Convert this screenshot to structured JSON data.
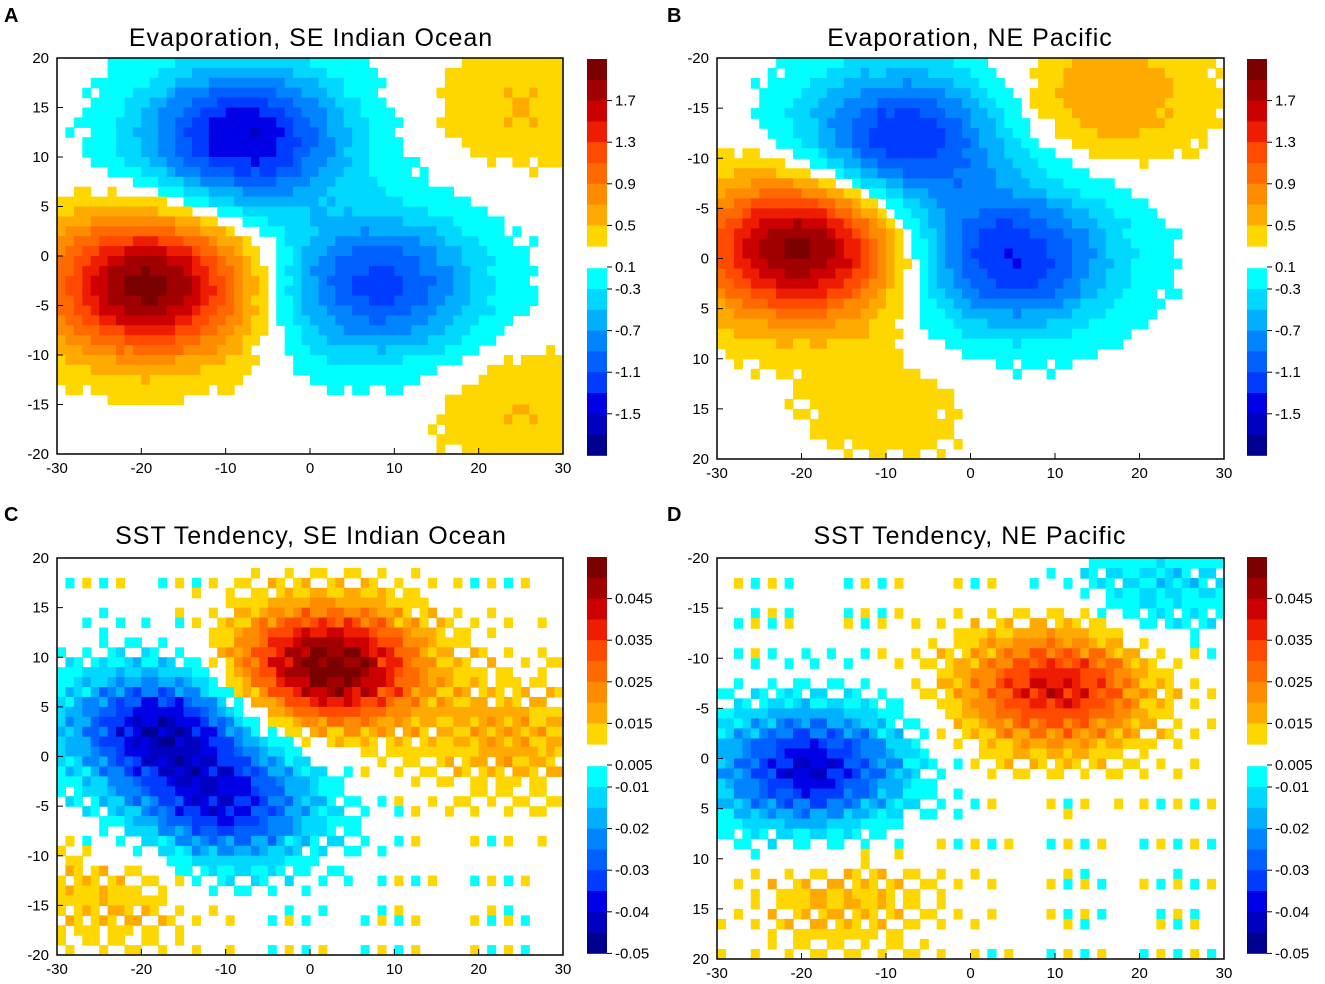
{
  "figure": {
    "panels": [
      "A",
      "B",
      "C",
      "D"
    ]
  },
  "palette": {
    "warm": [
      "#ffd700",
      "#ffaa00",
      "#ff8c00",
      "#ff6a00",
      "#ff4a00",
      "#ee1c00",
      "#cc0000",
      "#a00000",
      "#7b0000"
    ],
    "cool": [
      "#00ffff",
      "#00d8ff",
      "#00b0ff",
      "#0084ff",
      "#0060ff",
      "#003cff",
      "#0000e6",
      "#0000c0",
      "#000090"
    ]
  },
  "chart_data": [
    {
      "panel": "A",
      "type": "heatmap",
      "title": "Evaporation, SE Indian Ocean",
      "xlim": [
        -30,
        30
      ],
      "ylim": [
        -20,
        20
      ],
      "x_ticks": [
        "-30",
        "-20",
        "-10",
        "0",
        "10",
        "20",
        "30"
      ],
      "y_ticks": [
        "20",
        "15",
        "10",
        "5",
        "0",
        "-5",
        "-10",
        "-15",
        "-20"
      ],
      "colorbar": {
        "warm_levels": [
          0.1,
          0.3,
          0.5,
          0.7,
          0.9,
          1.1,
          1.3,
          1.5,
          1.7
        ],
        "cool_levels": [
          -0.1,
          -0.3,
          -0.5,
          -0.7,
          -0.9,
          -1.1,
          -1.3,
          -1.5,
          -1.7
        ],
        "warm_labels": [
          "1.7",
          "1.3",
          "0.9",
          "0.5",
          "0.1"
        ],
        "cool_labels": [
          "-0.3",
          "-0.7",
          "-1.1",
          "-1.5"
        ]
      },
      "features": [
        {
          "sign": "positive",
          "peak_x": -19,
          "peak_y": -3,
          "peak_value": 1.8
        },
        {
          "sign": "negative",
          "peak_x": -8,
          "peak_y": 12,
          "peak_value": -1.5
        },
        {
          "sign": "negative",
          "peak_x": 8,
          "peak_y": -3,
          "peak_value": -1.2
        },
        {
          "sign": "positive",
          "peak_x": 25,
          "peak_y": 15,
          "peak_value": 0.3
        },
        {
          "sign": "positive",
          "peak_x": 25,
          "peak_y": -15,
          "peak_value": 0.3
        }
      ]
    },
    {
      "panel": "B",
      "type": "heatmap",
      "title": "Evaporation, NE Pacific",
      "xlim": [
        -30,
        30
      ],
      "ylim": [
        -20,
        20
      ],
      "x_ticks": [
        "-30",
        "-20",
        "-10",
        "0",
        "10",
        "20",
        "30"
      ],
      "y_ticks": [
        "-20",
        "-15",
        "-10",
        "-5",
        "0",
        "5",
        "10",
        "15",
        "20"
      ],
      "colorbar": {
        "warm_levels": [
          0.1,
          0.3,
          0.5,
          0.7,
          0.9,
          1.1,
          1.3,
          1.5,
          1.7
        ],
        "cool_levels": [
          -0.1,
          -0.3,
          -0.5,
          -0.7,
          -0.9,
          -1.1,
          -1.3,
          -1.5,
          -1.7
        ],
        "warm_labels": [
          "1.7",
          "1.3",
          "0.9",
          "0.5",
          "0.1"
        ],
        "cool_labels": [
          "-0.3",
          "-0.7",
          "-1.1",
          "-1.5"
        ]
      },
      "features": [
        {
          "sign": "positive",
          "peak_x": -20,
          "peak_y": -1,
          "peak_value": 1.8
        },
        {
          "sign": "negative",
          "peak_x": -8,
          "peak_y": -12,
          "peak_value": -1.3
        },
        {
          "sign": "negative",
          "peak_x": 5,
          "peak_y": 0,
          "peak_value": -1.3
        },
        {
          "sign": "positive",
          "peak_x": 16,
          "peak_y": -16,
          "peak_value": 0.5
        },
        {
          "sign": "positive",
          "peak_x": -10,
          "peak_y": 15,
          "peak_value": 0.2
        }
      ]
    },
    {
      "panel": "C",
      "type": "heatmap",
      "title": "SST Tendency, SE Indian Ocean",
      "xlim": [
        -30,
        30
      ],
      "ylim": [
        -20,
        20
      ],
      "x_ticks": [
        "-30",
        "-20",
        "-10",
        "0",
        "10",
        "20",
        "30"
      ],
      "y_ticks": [
        "20",
        "15",
        "10",
        "5",
        "0",
        "-5",
        "-10",
        "-15",
        "-20"
      ],
      "colorbar": {
        "warm_levels": [
          0.005,
          0.01,
          0.015,
          0.02,
          0.025,
          0.03,
          0.035,
          0.04,
          0.045
        ],
        "cool_levels": [
          -0.005,
          -0.01,
          -0.015,
          -0.02,
          -0.025,
          -0.03,
          -0.035,
          -0.04,
          -0.045
        ],
        "warm_labels": [
          "0.045",
          "0.035",
          "0.025",
          "0.015",
          "0.005"
        ],
        "cool_labels": [
          "-0.01",
          "-0.02",
          "-0.03",
          "-0.04",
          "-0.05"
        ]
      },
      "features": [
        {
          "sign": "positive",
          "peak_x": 2,
          "peak_y": 9,
          "peak_value": 0.05
        },
        {
          "sign": "negative",
          "peak_x": -18,
          "peak_y": 3,
          "peak_value": -0.04
        },
        {
          "sign": "negative",
          "peak_x": -10,
          "peak_y": -5,
          "peak_value": -0.035
        },
        {
          "sign": "positive",
          "peak_x": 24,
          "peak_y": 2,
          "peak_value": 0.012
        },
        {
          "sign": "positive",
          "peak_x": -24,
          "peak_y": -14,
          "peak_value": 0.01
        }
      ]
    },
    {
      "panel": "D",
      "type": "heatmap",
      "title": "SST Tendency, NE Pacific",
      "xlim": [
        -30,
        30
      ],
      "ylim": [
        -20,
        20
      ],
      "x_ticks": [
        "-30",
        "-20",
        "-10",
        "0",
        "10",
        "20",
        "30"
      ],
      "y_ticks": [
        "-20",
        "-15",
        "-10",
        "-5",
        "0",
        "5",
        "10",
        "15",
        "20"
      ],
      "colorbar": {
        "warm_levels": [
          0.005,
          0.01,
          0.015,
          0.02,
          0.025,
          0.03,
          0.035,
          0.04,
          0.045
        ],
        "cool_levels": [
          -0.005,
          -0.01,
          -0.015,
          -0.02,
          -0.025,
          -0.03,
          -0.035,
          -0.04,
          -0.045
        ],
        "warm_labels": [
          "0.045",
          "0.035",
          "0.025",
          "0.015",
          "0.005"
        ],
        "cool_labels": [
          "-0.01",
          "-0.02",
          "-0.03",
          "-0.04",
          "-0.05"
        ]
      },
      "features": [
        {
          "sign": "positive",
          "peak_x": 10,
          "peak_y": -7,
          "peak_value": 0.035
        },
        {
          "sign": "negative",
          "peak_x": -19,
          "peak_y": 1,
          "peak_value": -0.04
        },
        {
          "sign": "negative",
          "peak_x": 22,
          "peak_y": -17,
          "peak_value": -0.012
        },
        {
          "sign": "positive",
          "peak_x": -15,
          "peak_y": 14,
          "peak_value": 0.01
        }
      ]
    }
  ]
}
